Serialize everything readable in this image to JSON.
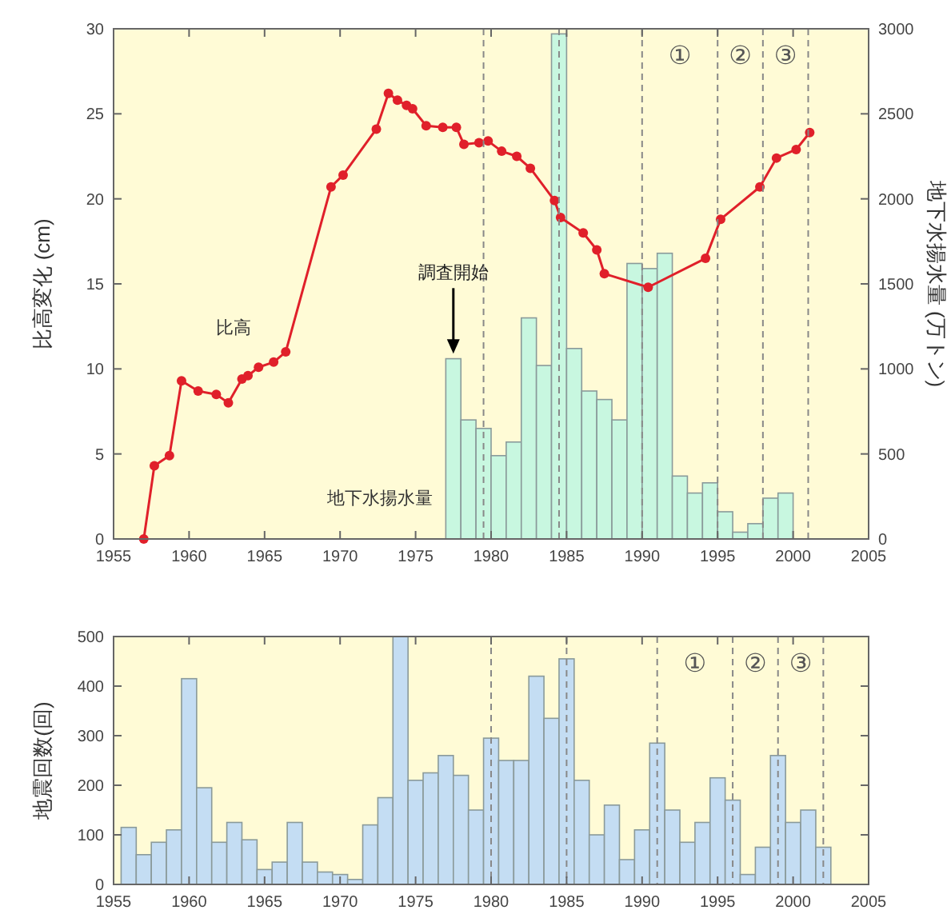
{
  "chart_data": [
    {
      "type": "line",
      "ylabel": "比高変化 (cm)",
      "y2label": "地下水揚水量 (万トン)",
      "xlim": [
        1955,
        2005
      ],
      "xticks": [
        1955,
        1960,
        1965,
        1970,
        1975,
        1980,
        1985,
        1990,
        1995,
        2000,
        2005
      ],
      "ylim": [
        0,
        30
      ],
      "yticks": [
        0,
        5,
        10,
        15,
        20,
        25,
        30
      ],
      "y2lim": [
        0,
        3000
      ],
      "y2ticks": [
        0,
        500,
        1000,
        1500,
        2000,
        2500,
        3000
      ],
      "legend": false,
      "grid": false,
      "marker": "circle",
      "line_style": "solid",
      "series": [
        {
          "name": "地下水揚水量",
          "type": "bar",
          "axis": "y2",
          "color": "#c8f7e0",
          "x": [
            1977.5,
            1978.5,
            1979.5,
            1980.5,
            1981.5,
            1982.5,
            1983.5,
            1984.5,
            1985.5,
            1986.5,
            1987.5,
            1988.5,
            1989.5,
            1990.5,
            1991.5,
            1992.5,
            1993.5,
            1994.5,
            1995.5,
            1996.5,
            1997.5,
            1998.5,
            1999.5
          ],
          "values": [
            1060,
            700,
            650,
            490,
            570,
            1300,
            1020,
            2970,
            1120,
            870,
            820,
            700,
            1620,
            1590,
            1680,
            370,
            270,
            330,
            160,
            40,
            90,
            240,
            270
          ]
        },
        {
          "name": "比高",
          "color": "#e0202a",
          "x": [
            1957,
            1957.7,
            1958.7,
            1959.5,
            1960.6,
            1961.8,
            1962.6,
            1963.5,
            1963.9,
            1964.6,
            1965.6,
            1966.4,
            1969.4,
            1970.2,
            1972.4,
            1973.2,
            1973.8,
            1974.4,
            1974.8,
            1975.7,
            1976.8,
            1977.7,
            1978.2,
            1979.2,
            1979.8,
            1980.7,
            1981.7,
            1982.6,
            1984.2,
            1984.6,
            1986.1,
            1987.0,
            1987.5,
            1990.4,
            1994.2,
            1995.2,
            1997.8,
            1998.9,
            2000.2,
            2001.1
          ],
          "values": [
            0,
            4.3,
            4.9,
            9.3,
            8.7,
            8.5,
            8.0,
            9.4,
            9.6,
            10.1,
            10.4,
            11.0,
            20.7,
            21.4,
            24.1,
            26.2,
            25.8,
            25.5,
            25.3,
            24.3,
            24.2,
            24.2,
            23.2,
            23.3,
            23.4,
            22.8,
            22.5,
            21.8,
            19.9,
            18.9,
            18.0,
            17.0,
            15.6,
            14.8,
            16.5,
            18.8,
            20.7,
            22.4,
            22.9,
            23.9
          ]
        }
      ],
      "ref_lines": [
        {
          "axis": "x",
          "value": 1979.5,
          "line_style": "dashed",
          "color": "#888888"
        },
        {
          "axis": "x",
          "value": 1984.5,
          "line_style": "dashed",
          "color": "#888888"
        },
        {
          "axis": "x",
          "value": 1990,
          "line_style": "dashed",
          "color": "#888888"
        },
        {
          "axis": "x",
          "value": 1995,
          "line_style": "dashed",
          "color": "#888888"
        },
        {
          "axis": "x",
          "value": 1998,
          "line_style": "dashed",
          "color": "#888888"
        },
        {
          "axis": "x",
          "value": 2001,
          "line_style": "dashed",
          "color": "#888888"
        }
      ],
      "annotations": [
        {
          "text": "調査開始",
          "x": 1977.5,
          "y": 10.8
        },
        "①",
        "②",
        "③"
      ]
    },
    {
      "type": "bar",
      "ylabel": "地震回数(回)",
      "xlim": [
        1955,
        2005
      ],
      "xticks": [
        1955,
        1960,
        1965,
        1970,
        1975,
        1980,
        1985,
        1990,
        1995,
        2000,
        2005
      ],
      "ylim": [
        0,
        500
      ],
      "yticks": [
        0,
        100,
        200,
        300,
        400,
        500
      ],
      "grid": false,
      "color": "#c4ddf3",
      "x": [
        1956,
        1957,
        1958,
        1959,
        1960,
        1961,
        1962,
        1963,
        1964,
        1965,
        1966,
        1967,
        1968,
        1969,
        1970,
        1971,
        1972,
        1973,
        1974,
        1975,
        1976,
        1977,
        1978,
        1979,
        1980,
        1981,
        1982,
        1983,
        1984,
        1985,
        1986,
        1987,
        1988,
        1989,
        1990,
        1991,
        1992,
        1993,
        1994,
        1995,
        1996,
        1997,
        1998,
        1999,
        2000,
        2001,
        2002
      ],
      "values": [
        115,
        60,
        85,
        110,
        415,
        195,
        85,
        125,
        90,
        30,
        45,
        125,
        45,
        25,
        20,
        10,
        120,
        175,
        500,
        210,
        225,
        260,
        220,
        150,
        295,
        250,
        250,
        420,
        335,
        455,
        210,
        100,
        160,
        50,
        110,
        285,
        150,
        85,
        125,
        215,
        170,
        20,
        75,
        260,
        125,
        150,
        75
      ],
      "ref_lines": [
        {
          "axis": "x",
          "value": 1980,
          "line_style": "dashed",
          "color": "#888888"
        },
        {
          "axis": "x",
          "value": 1985,
          "line_style": "dashed",
          "color": "#888888"
        },
        {
          "axis": "x",
          "value": 1991,
          "line_style": "dashed",
          "color": "#888888"
        },
        {
          "axis": "x",
          "value": 1996,
          "line_style": "dashed",
          "color": "#888888"
        },
        {
          "axis": "x",
          "value": 1999,
          "line_style": "dashed",
          "color": "#888888"
        },
        {
          "axis": "x",
          "value": 2002,
          "line_style": "dashed",
          "color": "#888888"
        }
      ],
      "annotations": [
        "①",
        "②",
        "③"
      ]
    }
  ]
}
